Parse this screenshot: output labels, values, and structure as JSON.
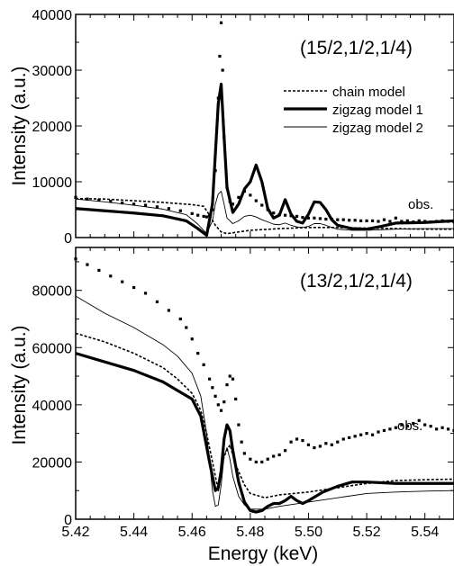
{
  "chart_data": [
    {
      "type": "scatter",
      "panel_label": "(15/2,1/2,1/4)",
      "ylabel": "Intensity (a.u.)",
      "xlabel": "",
      "xlim": [
        5.42,
        5.55
      ],
      "ylim": [
        0,
        40000
      ],
      "x_ticks": [
        5.42,
        5.44,
        5.46,
        5.48,
        5.5,
        5.52,
        5.54
      ],
      "y_ticks": [
        0,
        10000,
        20000,
        30000,
        40000
      ],
      "y_tick_labels": [
        "0",
        "10000",
        "20000",
        "30000",
        "40000"
      ],
      "grid": false,
      "legend_position": "upper-right",
      "annotation": "obs.",
      "series": [
        {
          "name": "obs.",
          "style": "dots",
          "x": [
            5.42,
            5.424,
            5.428,
            5.432,
            5.436,
            5.44,
            5.444,
            5.448,
            5.452,
            5.456,
            5.46,
            5.462,
            5.464,
            5.465,
            5.466,
            5.467,
            5.468,
            5.469,
            5.4695,
            5.47,
            5.4705,
            5.471,
            5.472,
            5.473,
            5.474,
            5.476,
            5.478,
            5.48,
            5.482,
            5.484,
            5.486,
            5.488,
            5.49,
            5.492,
            5.494,
            5.496,
            5.498,
            5.5,
            5.502,
            5.504,
            5.506,
            5.508,
            5.51,
            5.512,
            5.514,
            5.516,
            5.518,
            5.52,
            5.522,
            5.524,
            5.526,
            5.528,
            5.53,
            5.532,
            5.534,
            5.536,
            5.538,
            5.54,
            5.542,
            5.544,
            5.546,
            5.548,
            5.55
          ],
          "y": [
            7200,
            6900,
            6700,
            6500,
            6200,
            6000,
            5800,
            5500,
            5200,
            4800,
            4300,
            4000,
            3800,
            3700,
            3900,
            5000,
            12000,
            25000,
            32500,
            38500,
            30000,
            18000,
            9000,
            6500,
            6000,
            7200,
            8300,
            7600,
            6600,
            5800,
            5000,
            4400,
            4100,
            4000,
            3900,
            3800,
            3600,
            3500,
            3500,
            3400,
            3300,
            3300,
            3200,
            3200,
            3100,
            3100,
            3000,
            3000,
            3000,
            2900,
            3200,
            2900,
            3500,
            2900,
            3000,
            2800,
            3000,
            2900,
            2800,
            2900,
            3000,
            2900,
            2800
          ]
        },
        {
          "name": "chain model",
          "style": "dashed",
          "x": [
            5.42,
            5.43,
            5.44,
            5.45,
            5.46,
            5.464,
            5.466,
            5.468,
            5.47,
            5.472,
            5.476,
            5.48,
            5.49,
            5.5,
            5.51,
            5.52,
            5.53,
            5.54,
            5.55
          ],
          "y": [
            7000,
            6900,
            6600,
            6300,
            5900,
            5600,
            4000,
            2200,
            1000,
            700,
            1000,
            1300,
            1600,
            1800,
            1800,
            1700,
            1600,
            1500,
            1500
          ]
        },
        {
          "name": "zigzag model 1",
          "style": "thick",
          "x": [
            5.42,
            5.43,
            5.44,
            5.45,
            5.458,
            5.462,
            5.465,
            5.467,
            5.468,
            5.469,
            5.47,
            5.471,
            5.472,
            5.474,
            5.476,
            5.478,
            5.48,
            5.482,
            5.484,
            5.486,
            5.488,
            5.49,
            5.492,
            5.494,
            5.496,
            5.498,
            5.5,
            5.502,
            5.504,
            5.506,
            5.508,
            5.51,
            5.515,
            5.52,
            5.525,
            5.53,
            5.54,
            5.55
          ],
          "y": [
            5200,
            4800,
            4400,
            3900,
            3000,
            1600,
            400,
            6000,
            15000,
            24000,
            27500,
            18000,
            9000,
            4500,
            6000,
            8700,
            10000,
            13000,
            10000,
            5200,
            3500,
            4000,
            6800,
            4200,
            2900,
            2600,
            4200,
            6400,
            6300,
            5000,
            3200,
            2200,
            1600,
            1500,
            2000,
            2600,
            2700,
            3000
          ]
        },
        {
          "name": "zigzag model 2",
          "style": "thin",
          "x": [
            5.42,
            5.43,
            5.44,
            5.45,
            5.458,
            5.462,
            5.465,
            5.467,
            5.468,
            5.469,
            5.47,
            5.471,
            5.472,
            5.474,
            5.476,
            5.478,
            5.48,
            5.482,
            5.484,
            5.486,
            5.488,
            5.49,
            5.492,
            5.494,
            5.496,
            5.498,
            5.5,
            5.502,
            5.504,
            5.506,
            5.508,
            5.51,
            5.515,
            5.52,
            5.525,
            5.53,
            5.54,
            5.55
          ],
          "y": [
            6900,
            6400,
            5800,
            5100,
            4100,
            2400,
            700,
            3000,
            6000,
            7800,
            8300,
            6000,
            3500,
            2500,
            3000,
            3800,
            4000,
            3700,
            3200,
            2800,
            2400,
            2300,
            2600,
            2200,
            1900,
            1800,
            2000,
            2500,
            2500,
            2200,
            1800,
            1500,
            1300,
            1300,
            1400,
            1500,
            1600,
            1600
          ]
        }
      ],
      "legend": [
        {
          "label": "chain model",
          "style": "dashed"
        },
        {
          "label": "zigzag model 1",
          "style": "thick"
        },
        {
          "label": "zigzag model 2",
          "style": "thin"
        }
      ]
    },
    {
      "type": "scatter",
      "panel_label": "(13/2,1/2,1/4)",
      "ylabel": "Intensity (a.u.)",
      "xlabel": "Energy (keV)",
      "xlim": [
        5.42,
        5.55
      ],
      "ylim": [
        0,
        95000
      ],
      "x_ticks": [
        5.42,
        5.44,
        5.46,
        5.48,
        5.5,
        5.52,
        5.54
      ],
      "x_tick_labels": [
        "5.42",
        "5.44",
        "5.46",
        "5.48",
        "5.50",
        "5.52",
        "5.54"
      ],
      "y_ticks": [
        0,
        20000,
        40000,
        60000,
        80000
      ],
      "y_tick_labels": [
        "0",
        "20000",
        "40000",
        "60000",
        "80000"
      ],
      "grid": false,
      "annotation": "obs.",
      "series": [
        {
          "name": "obs.",
          "style": "dots",
          "x": [
            5.42,
            5.424,
            5.428,
            5.432,
            5.436,
            5.44,
            5.444,
            5.448,
            5.452,
            5.456,
            5.458,
            5.46,
            5.462,
            5.464,
            5.466,
            5.467,
            5.468,
            5.469,
            5.47,
            5.471,
            5.472,
            5.473,
            5.474,
            5.475,
            5.476,
            5.477,
            5.478,
            5.48,
            5.482,
            5.484,
            5.486,
            5.488,
            5.49,
            5.492,
            5.494,
            5.496,
            5.498,
            5.5,
            5.502,
            5.504,
            5.506,
            5.508,
            5.51,
            5.512,
            5.514,
            5.516,
            5.518,
            5.52,
            5.522,
            5.524,
            5.526,
            5.528,
            5.53,
            5.532,
            5.534,
            5.536,
            5.538,
            5.54,
            5.542,
            5.544,
            5.546,
            5.548,
            5.55
          ],
          "y": [
            91000,
            89000,
            87000,
            85000,
            83000,
            81000,
            79000,
            76000,
            73000,
            70000,
            67000,
            63000,
            58000,
            54000,
            49000,
            46000,
            43000,
            40000,
            38000,
            41000,
            47000,
            50000,
            49000,
            42000,
            33000,
            27000,
            23000,
            21000,
            20000,
            20000,
            21000,
            22000,
            22500,
            24000,
            27000,
            28000,
            27500,
            26000,
            25000,
            25500,
            26500,
            26000,
            27000,
            28000,
            28500,
            29000,
            29500,
            30000,
            29500,
            30500,
            31000,
            31500,
            32000,
            33000,
            32500,
            33500,
            34500,
            33000,
            32500,
            31500,
            32000,
            31500,
            31000
          ]
        },
        {
          "name": "chain model",
          "style": "dashed",
          "x": [
            5.42,
            5.43,
            5.44,
            5.45,
            5.455,
            5.46,
            5.463,
            5.465,
            5.467,
            5.469,
            5.471,
            5.473,
            5.475,
            5.478,
            5.48,
            5.485,
            5.49,
            5.5,
            5.51,
            5.52,
            5.53,
            5.54,
            5.55
          ],
          "y": [
            65000,
            62000,
            58000,
            53000,
            49000,
            44000,
            38000,
            30000,
            20000,
            10000,
            22000,
            26000,
            19000,
            12000,
            9000,
            7500,
            8500,
            9500,
            11000,
            12500,
            13500,
            13800,
            14000
          ]
        },
        {
          "name": "zigzag model 1",
          "style": "thick",
          "x": [
            5.42,
            5.43,
            5.44,
            5.45,
            5.455,
            5.46,
            5.463,
            5.466,
            5.468,
            5.469,
            5.47,
            5.471,
            5.472,
            5.473,
            5.474,
            5.476,
            5.478,
            5.48,
            5.482,
            5.484,
            5.486,
            5.488,
            5.49,
            5.492,
            5.494,
            5.496,
            5.498,
            5.5,
            5.505,
            5.51,
            5.515,
            5.52,
            5.53,
            5.54,
            5.55
          ],
          "y": [
            58000,
            55000,
            52000,
            48000,
            45000,
            42000,
            36000,
            20000,
            10000,
            11000,
            17000,
            28000,
            33000,
            31000,
            24000,
            13000,
            6000,
            3000,
            2500,
            3000,
            4500,
            5500,
            5500,
            6500,
            8000,
            6500,
            5500,
            6500,
            9500,
            11500,
            13000,
            13000,
            12500,
            12500,
            12500
          ]
        },
        {
          "name": "zigzag model 2",
          "style": "thin",
          "x": [
            5.42,
            5.43,
            5.44,
            5.45,
            5.455,
            5.46,
            5.463,
            5.465,
            5.467,
            5.468,
            5.469,
            5.47,
            5.471,
            5.472,
            5.473,
            5.474,
            5.476,
            5.478,
            5.48,
            5.485,
            5.49,
            5.5,
            5.51,
            5.52,
            5.53,
            5.54,
            5.55
          ],
          "y": [
            78000,
            72000,
            67000,
            61000,
            57000,
            51000,
            43000,
            30000,
            10000,
            4500,
            5000,
            12000,
            22000,
            25000,
            21000,
            15000,
            8000,
            5000,
            3500,
            3500,
            4500,
            6000,
            7500,
            9000,
            9500,
            9800,
            10000
          ]
        }
      ]
    }
  ]
}
